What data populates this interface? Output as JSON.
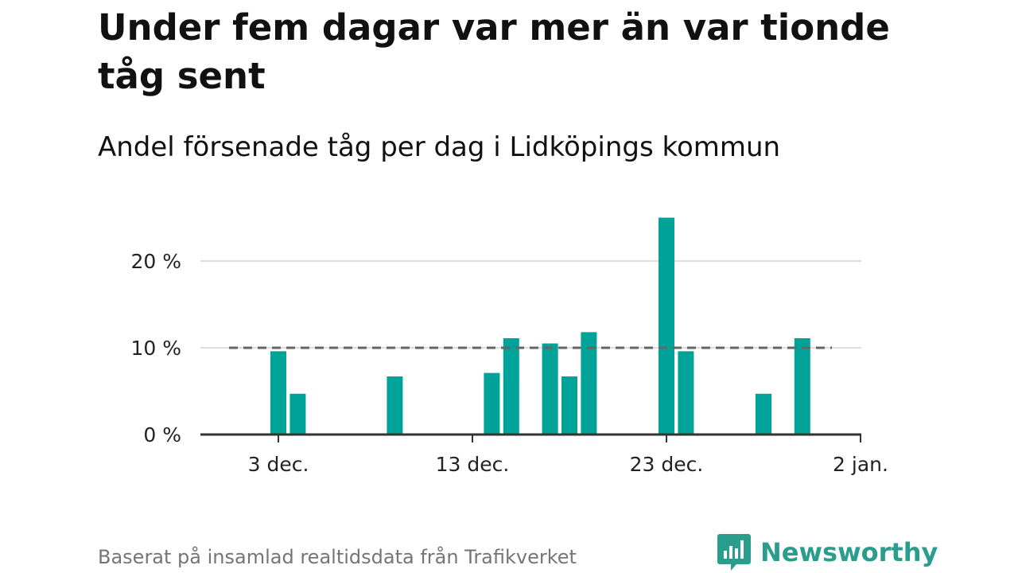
{
  "title": "Under fem dagar var mer än var tionde tåg sent",
  "subtitle": "Andel försenade tåg per dag i Lidköpings kommun",
  "footer": "Baserat på insamlad realtidsdata från Trafikverket",
  "brand": "Newsworthy",
  "colors": {
    "bar": "#00a398",
    "grid": "#dddddd",
    "axis": "#333333",
    "reference": "#666666",
    "brand": "#2a9d8f"
  },
  "chart_data": {
    "type": "bar",
    "title": "Under fem dagar var mer än var tionde tåg sent",
    "subtitle": "Andel försenade tåg per dag i Lidköpings kommun",
    "xlabel": "",
    "ylabel": "",
    "ylim": [
      0,
      26
    ],
    "grid": true,
    "x_ticks": [
      {
        "day": 3,
        "label": "3 dec."
      },
      {
        "day": 13,
        "label": "13 dec."
      },
      {
        "day": 23,
        "label": "23 dec."
      },
      {
        "day": 33,
        "label": "2 jan."
      }
    ],
    "y_ticks": [
      {
        "value": 0,
        "label": "0 %"
      },
      {
        "value": 10,
        "label": "10 %"
      },
      {
        "value": 20,
        "label": "20 %"
      }
    ],
    "reference_line": {
      "value": 10,
      "style": "dashed"
    },
    "bars": [
      {
        "date": "3 dec.",
        "day": 3,
        "value": 9.6
      },
      {
        "date": "4 dec.",
        "day": 4,
        "value": 4.7
      },
      {
        "date": "9 dec.",
        "day": 9,
        "value": 6.7
      },
      {
        "date": "14 dec.",
        "day": 14,
        "value": 7.1
      },
      {
        "date": "15 dec.",
        "day": 15,
        "value": 11.1
      },
      {
        "date": "17 dec.",
        "day": 17,
        "value": 10.5
      },
      {
        "date": "18 dec.",
        "day": 18,
        "value": 6.7
      },
      {
        "date": "19 dec.",
        "day": 19,
        "value": 11.8
      },
      {
        "date": "23 dec.",
        "day": 23,
        "value": 25.0
      },
      {
        "date": "24 dec.",
        "day": 24,
        "value": 9.6
      },
      {
        "date": "28 dec.",
        "day": 28,
        "value": 4.7
      },
      {
        "date": "30 dec.",
        "day": 30,
        "value": 11.1
      }
    ]
  }
}
